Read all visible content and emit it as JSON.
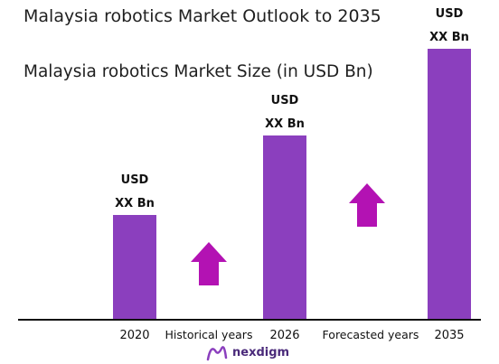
{
  "chart_data": {
    "type": "bar",
    "title": "Malaysia robotics Market Outlook to 2035",
    "subtitle": "Malaysia robotics Market Size (in USD Bn)",
    "categories": [
      "2020",
      "2026",
      "2035"
    ],
    "values": [
      2.9,
      5.1,
      7.5
    ],
    "data_labels": [
      [
        "USD",
        "XX Bn"
      ],
      [
        "USD",
        "XX Bn"
      ],
      [
        "USD",
        "XX Bn"
      ]
    ],
    "annotations": [
      "Historical years",
      "Forecasted years"
    ],
    "ylim": [
      0,
      8
    ],
    "grid": false,
    "legend": "none",
    "colors": {
      "bar": "#8b3fbe",
      "arrow": "#b312b3",
      "axis": "#111111"
    }
  },
  "branding": {
    "logo_text": "nexdigm",
    "logo_icon": "nexdigm-logo-icon"
  }
}
